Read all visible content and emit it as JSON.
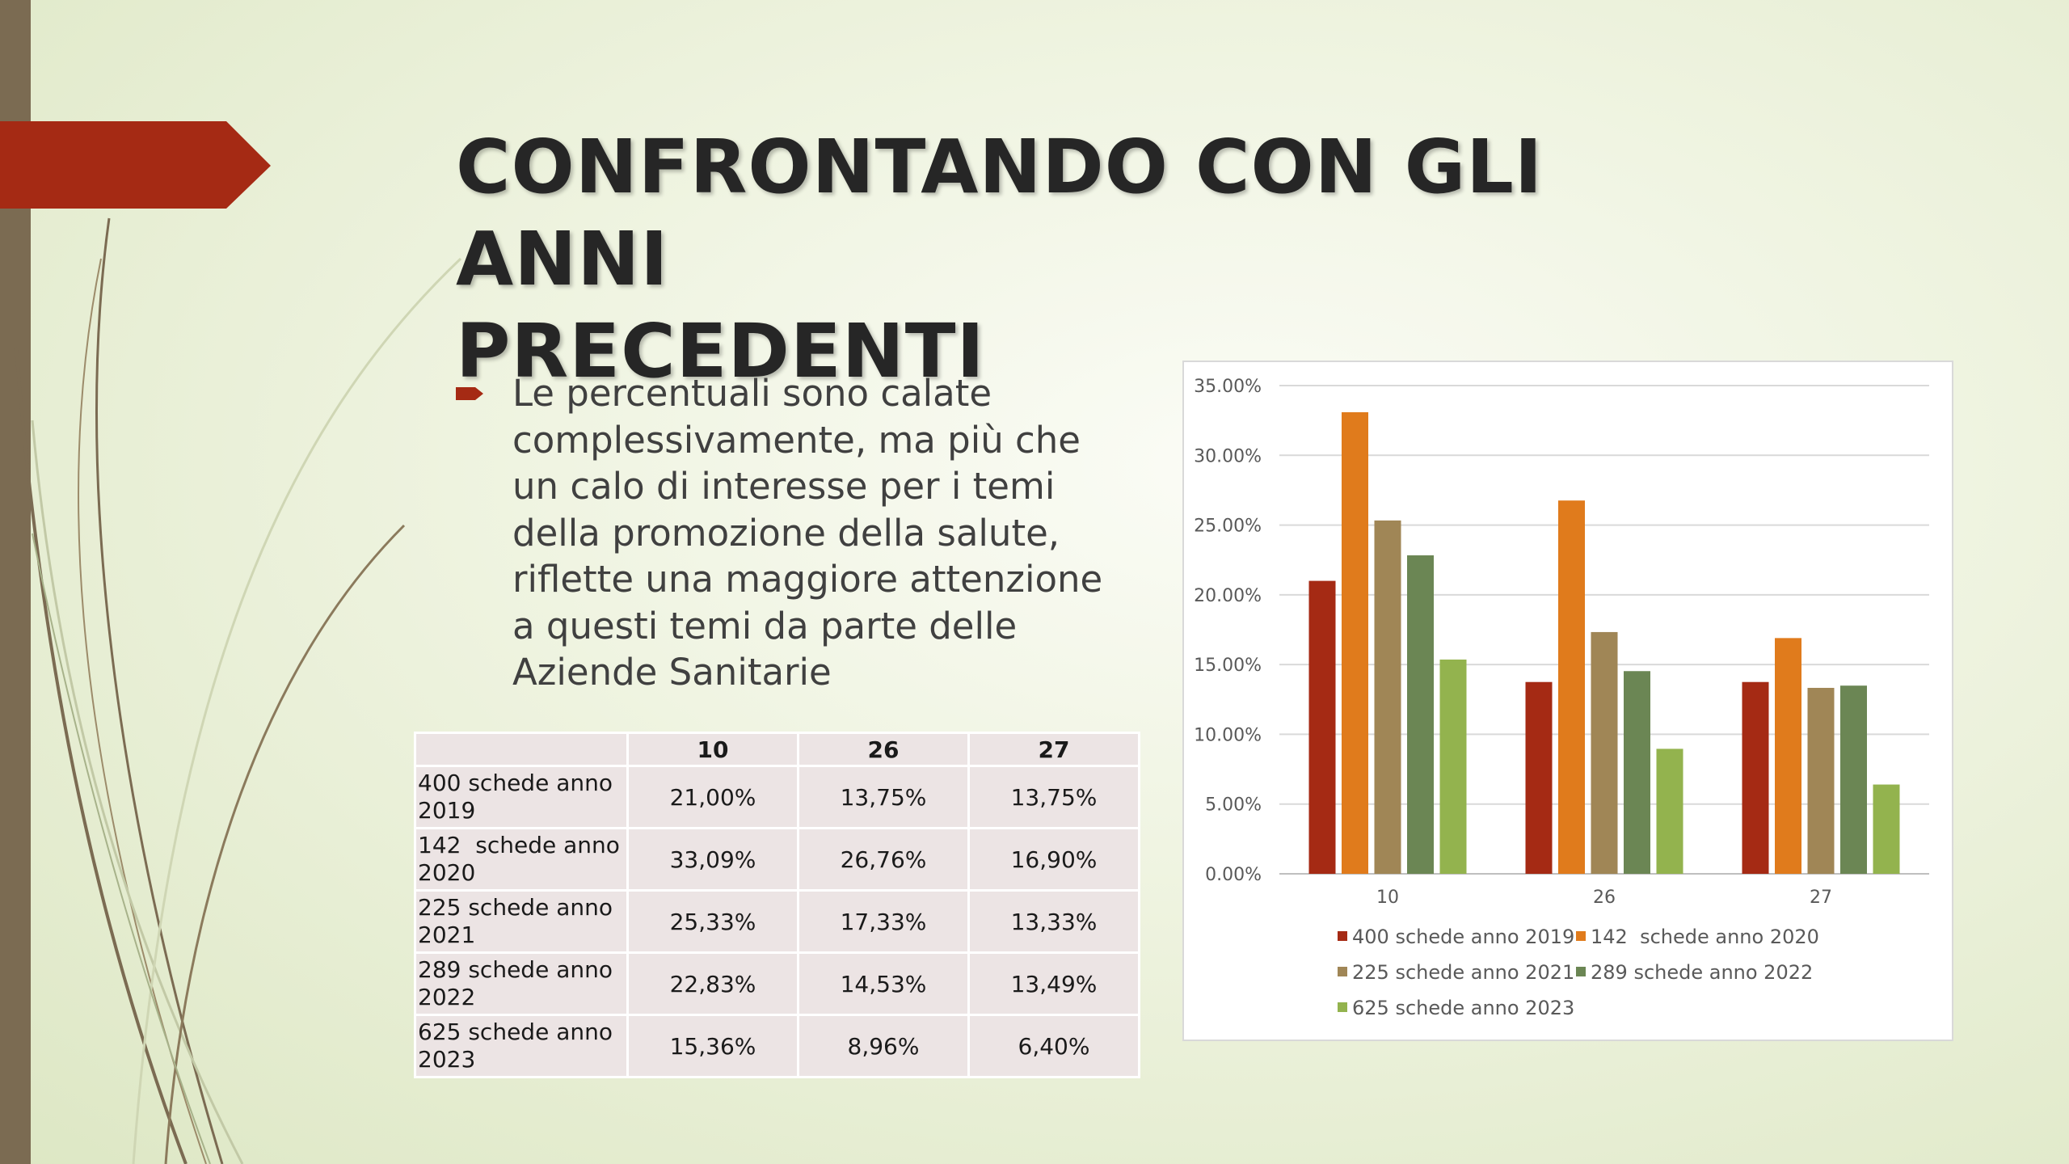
{
  "slide": {
    "title_line1": "CONFRONTANDO CON GLI ANNI",
    "title_line2": "PRECEDENTI",
    "bullet": {
      "line1": "Le percentuali sono calate",
      "line2": "complessivamente, ma più che",
      "line3": "un calo di interesse per i temi",
      "line4": "della promozione della salute,",
      "line5": "riflette una maggiore attenzione",
      "line6": "a questi temi da parte delle",
      "line7": "Aziende Sanitarie"
    }
  },
  "table": {
    "headers": [
      "",
      "10",
      "26",
      "27"
    ],
    "rows": [
      {
        "label_line1": "400 schede anno",
        "label_line2": "2019",
        "values": [
          "21,00%",
          "13,75%",
          "13,75%"
        ]
      },
      {
        "label_line1": "142  schede anno",
        "label_line2": "2020",
        "values": [
          "33,09%",
          "26,76%",
          "16,90%"
        ]
      },
      {
        "label_line1": "225 schede anno",
        "label_line2": "2021",
        "values": [
          "25,33%",
          "17,33%",
          "13,33%"
        ]
      },
      {
        "label_line1": "289 schede anno",
        "label_line2": "2022",
        "values": [
          "22,83%",
          "14,53%",
          "13,49%"
        ]
      },
      {
        "label_line1": "625 schede anno",
        "label_line2": "2023",
        "values": [
          "15,36%",
          "8,96%",
          "6,40%"
        ]
      }
    ]
  },
  "chart_data": {
    "type": "bar",
    "categories": [
      "10",
      "26",
      "27"
    ],
    "series": [
      {
        "name": "400 schede anno 2019",
        "color": "#a52a14",
        "values": [
          21.0,
          13.75,
          13.75
        ]
      },
      {
        "name": "142  schede anno 2020",
        "color": "#e07b1c",
        "values": [
          33.09,
          26.76,
          16.9
        ]
      },
      {
        "name": "225 schede anno 2021",
        "color": "#a08656",
        "values": [
          25.33,
          17.33,
          13.33
        ]
      },
      {
        "name": "289 schede anno 2022",
        "color": "#6b8654",
        "values": [
          22.83,
          14.53,
          13.49
        ]
      },
      {
        "name": "625 schede anno 2023",
        "color": "#93b34e",
        "values": [
          15.36,
          8.96,
          6.4
        ]
      }
    ],
    "yticks": [
      "0.00%",
      "5.00%",
      "10.00%",
      "15.00%",
      "20.00%",
      "25.00%",
      "30.00%",
      "35.00%"
    ],
    "ylim": [
      0,
      35
    ],
    "grid": true,
    "legend": "bottom"
  },
  "colors": {
    "accent_red": "#a52a14",
    "side_bar": "#7b6b52"
  }
}
